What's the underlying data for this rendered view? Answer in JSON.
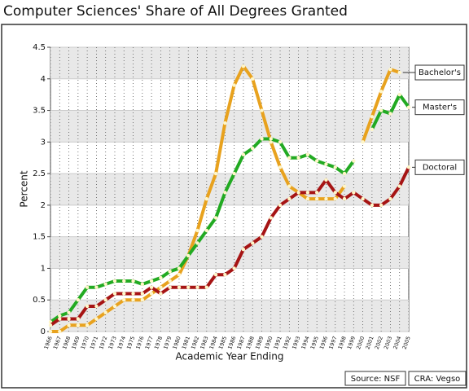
{
  "chart_data": {
    "type": "line",
    "title": "Computer Sciences' Share of All Degrees Granted",
    "xlabel": "Academic Year Ending",
    "ylabel": "Percent",
    "annotations": [
      "Source: NSF",
      "CRA: Vegso"
    ],
    "categories": [
      "1966",
      "1967",
      "1968",
      "1969",
      "1970",
      "1971",
      "1972",
      "1973",
      "1974",
      "1975",
      "1976",
      "1977",
      "1978",
      "1979",
      "1980",
      "1981",
      "1982",
      "1983",
      "1984",
      "1985",
      "1986",
      "1987",
      "1988",
      "1989",
      "1990",
      "1991",
      "1992",
      "1993",
      "1994",
      "1995",
      "1996",
      "1997",
      "1998",
      "1999",
      "2000",
      "2001",
      "2002",
      "2003",
      "2004",
      "2005"
    ],
    "series": [
      {
        "name": "Bachelor's",
        "color": "#e8a21e",
        "values": [
          0.0,
          0.0,
          0.1,
          0.1,
          0.1,
          0.2,
          0.3,
          0.4,
          0.5,
          0.5,
          0.5,
          0.6,
          0.7,
          0.8,
          0.9,
          1.2,
          1.6,
          2.1,
          2.5,
          3.3,
          3.9,
          4.2,
          4.0,
          3.5,
          3.0,
          2.6,
          2.3,
          2.2,
          2.1,
          2.1,
          2.1,
          2.1,
          2.3,
          null,
          3.0,
          3.4,
          3.8,
          4.15,
          4.1,
          null
        ]
      },
      {
        "name": "Master's",
        "color": "#22aa22",
        "values": [
          0.15,
          0.25,
          0.3,
          0.5,
          0.7,
          0.7,
          0.75,
          0.8,
          0.8,
          0.8,
          0.75,
          0.8,
          0.85,
          0.95,
          1.0,
          1.2,
          1.4,
          1.6,
          1.8,
          2.2,
          2.5,
          2.8,
          2.9,
          3.05,
          3.05,
          3.0,
          2.75,
          2.75,
          2.8,
          2.7,
          2.65,
          2.6,
          2.5,
          2.7,
          null,
          3.2,
          3.5,
          3.45,
          3.75,
          3.55
        ]
      },
      {
        "name": "Doctoral",
        "color": "#a61414",
        "values": [
          0.1,
          0.2,
          0.2,
          0.2,
          0.4,
          0.4,
          0.5,
          0.6,
          0.6,
          0.6,
          0.6,
          0.7,
          0.6,
          0.7,
          0.7,
          0.7,
          0.7,
          0.7,
          0.9,
          0.9,
          1.0,
          1.3,
          1.4,
          1.5,
          1.8,
          2.0,
          2.1,
          2.2,
          2.2,
          2.2,
          2.4,
          2.2,
          2.1,
          2.2,
          2.1,
          2.0,
          2.0,
          2.1,
          2.3,
          2.6
        ]
      }
    ],
    "ylim": [
      0,
      4.5
    ],
    "yticks": [
      0,
      0.5,
      1,
      1.5,
      2,
      2.5,
      3,
      3.5,
      4,
      4.5
    ],
    "grid": true
  }
}
